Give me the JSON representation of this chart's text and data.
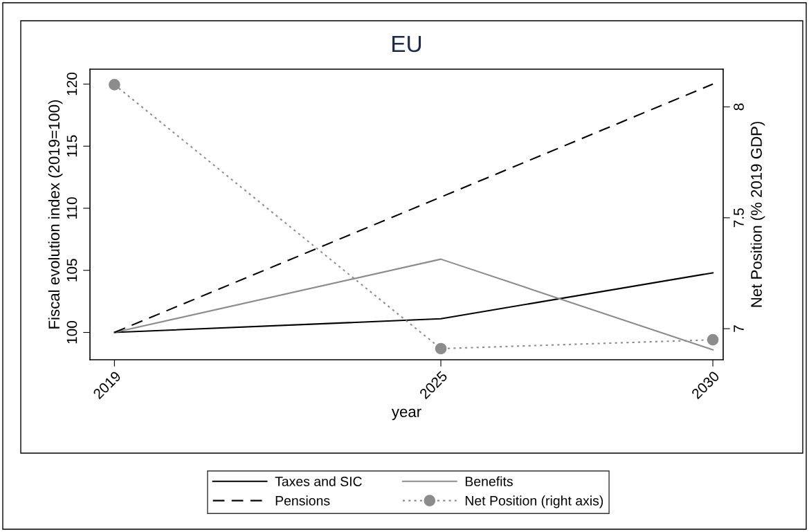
{
  "chart_data": {
    "type": "line",
    "title": "EU",
    "xlabel": "year",
    "ylabel": "Fiscal evolution index (2019=100)",
    "y2label": "Net Position (% 2019 GDP)",
    "x": [
      2019,
      2025,
      2030
    ],
    "series": [
      {
        "name": "Taxes and SIC",
        "color": "#000000",
        "values": [
          100,
          101.1,
          104.8
        ],
        "line_style": "solid",
        "marker": "none"
      },
      {
        "name": "Benefits",
        "color": "#8c8c8c",
        "values": [
          100,
          105.9,
          98.6
        ],
        "line_style": "solid",
        "marker": "none"
      },
      {
        "name": "Pensions",
        "color": "#000000",
        "values": [
          100,
          110.9,
          120.0
        ],
        "line_style": "dashed",
        "marker": "none"
      },
      {
        "name": "Net Position (right axis)",
        "color": "#8c8c8c",
        "values": [
          8.1,
          6.91,
          6.95
        ],
        "line_style": "dotted",
        "marker": "circle",
        "axis": "y2"
      }
    ],
    "xlim": [
      2018.55,
      2030.19
    ],
    "xticks": [
      2019,
      2025,
      2030
    ],
    "ylim": [
      97.8,
      121.2
    ],
    "yticks": [
      100,
      105,
      110,
      115,
      120
    ],
    "y2lim": [
      6.86,
      8.17
    ],
    "y2ticks": [
      7,
      7.5,
      8
    ],
    "grid": false,
    "legend": "bottom"
  }
}
